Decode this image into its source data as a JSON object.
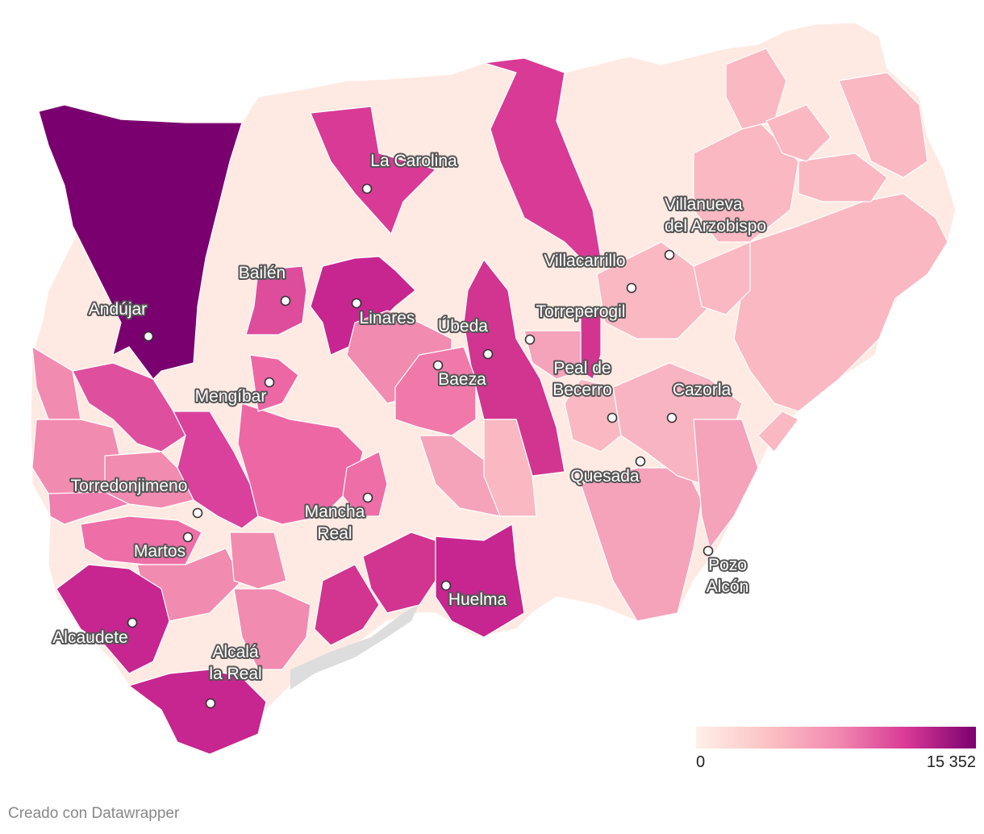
{
  "colors": {
    "scale_low": "#fff0e8",
    "scale_mid": "#f28bb0",
    "scale_high": "#7a006f",
    "sea": "#dddddd"
  },
  "legend": {
    "min_label": "0",
    "max_label": "15 352"
  },
  "credit": "Creado con Datawrapper",
  "cities": [
    {
      "key": "la-carolina",
      "lines": [
        "La Carolina"
      ]
    },
    {
      "key": "villanueva",
      "lines": [
        "Villanueva",
        "del Arzobispo"
      ]
    },
    {
      "key": "villacarrillo",
      "lines": [
        "Villacarrillo"
      ]
    },
    {
      "key": "bailen",
      "lines": [
        "Bailén"
      ]
    },
    {
      "key": "linares",
      "lines": [
        "Linares"
      ]
    },
    {
      "key": "andujar",
      "lines": [
        "Andújar"
      ]
    },
    {
      "key": "ubeda",
      "lines": [
        "Úbeda"
      ]
    },
    {
      "key": "torreperogil",
      "lines": [
        "Torreperogil"
      ]
    },
    {
      "key": "baeza",
      "lines": [
        "Baeza"
      ]
    },
    {
      "key": "peal",
      "lines": [
        "Peal de",
        "Becerro"
      ]
    },
    {
      "key": "cazorla",
      "lines": [
        "Cazorla"
      ]
    },
    {
      "key": "mengibar",
      "lines": [
        "Mengíbar"
      ]
    },
    {
      "key": "quesada",
      "lines": [
        "Quesada"
      ]
    },
    {
      "key": "torredonjimeno",
      "lines": [
        "Torredonjimeno"
      ]
    },
    {
      "key": "mancha-real",
      "lines": [
        "Mancha",
        "Real"
      ]
    },
    {
      "key": "martos",
      "lines": [
        "Martos"
      ]
    },
    {
      "key": "pozo-alcon",
      "lines": [
        "Pozo",
        "Alcón"
      ]
    },
    {
      "key": "huelma",
      "lines": [
        "Huelma"
      ]
    },
    {
      "key": "alcaudete",
      "lines": [
        "Alcaudete"
      ]
    },
    {
      "key": "alcala",
      "lines": [
        "Alcalá",
        "la Real"
      ]
    }
  ]
}
